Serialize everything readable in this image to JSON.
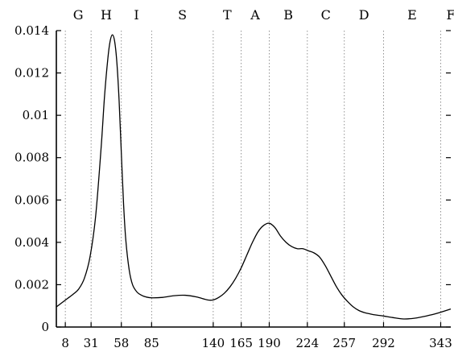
{
  "chart_data": {
    "type": "line",
    "title": "",
    "xlabel": "",
    "ylabel": "",
    "xlim": [
      0,
      352
    ],
    "ylim": [
      0,
      0.014
    ],
    "grid": "vertical dotted lines at x tick positions",
    "legend": "none",
    "line_color": "#000000",
    "x_ticks": [
      8,
      31,
      58,
      85,
      140,
      165,
      190,
      224,
      257,
      292,
      343
    ],
    "x_tick_labels": [
      "8",
      "31",
      "58",
      "85",
      "140",
      "165",
      "190",
      "224",
      "257",
      "292",
      "343"
    ],
    "y_ticks": [
      0,
      0.002,
      0.004,
      0.006,
      0.008,
      0.01,
      0.012,
      0.014
    ],
    "y_tick_labels": [
      "0",
      "0.002",
      "0.004",
      "0.006",
      "0.008",
      "0.01",
      "0.012",
      "0.014"
    ],
    "top_labels": [
      {
        "text": "G",
        "x": 19.5
      },
      {
        "text": "H",
        "x": 44.5
      },
      {
        "text": "I",
        "x": 71.5
      },
      {
        "text": "S",
        "x": 112.5
      },
      {
        "text": "T",
        "x": 152.5
      },
      {
        "text": "A",
        "x": 177.5
      },
      {
        "text": "B",
        "x": 207
      },
      {
        "text": "C",
        "x": 240.5
      },
      {
        "text": "D",
        "x": 274.5
      },
      {
        "text": "E",
        "x": 317.5
      },
      {
        "text": "F",
        "x": 352
      }
    ],
    "series": [
      {
        "x": [
          0,
          5,
          10,
          15,
          20,
          25,
          30,
          35,
          40,
          43,
          46,
          48,
          50,
          52,
          54,
          56,
          58,
          60,
          62,
          65,
          68,
          72,
          76,
          80,
          85,
          95,
          105,
          115,
          125,
          135,
          140,
          145,
          150,
          155,
          160,
          165,
          170,
          175,
          180,
          185,
          190,
          195,
          200,
          205,
          210,
          215,
          220,
          225,
          230,
          235,
          240,
          245,
          250,
          255,
          260,
          265,
          270,
          275,
          280,
          285,
          292,
          300,
          310,
          320,
          330,
          340,
          352
        ],
        "y": [
          0.00095,
          0.00115,
          0.00135,
          0.00155,
          0.0018,
          0.0023,
          0.0033,
          0.0052,
          0.0085,
          0.0109,
          0.0127,
          0.0135,
          0.0138,
          0.0135,
          0.0125,
          0.0107,
          0.0082,
          0.0058,
          0.0041,
          0.0027,
          0.002,
          0.00165,
          0.0015,
          0.00142,
          0.00138,
          0.0014,
          0.00148,
          0.0015,
          0.00142,
          0.00128,
          0.00128,
          0.0014,
          0.0016,
          0.0019,
          0.0023,
          0.0028,
          0.0034,
          0.004,
          0.0045,
          0.0048,
          0.0049,
          0.0047,
          0.0043,
          0.004,
          0.0038,
          0.0037,
          0.0037,
          0.0036,
          0.0035,
          0.0033,
          0.0029,
          0.0024,
          0.0019,
          0.0015,
          0.0012,
          0.00095,
          0.00078,
          0.00068,
          0.00062,
          0.00057,
          0.00052,
          0.00045,
          0.00038,
          0.00042,
          0.00052,
          0.00065,
          0.00085
        ]
      }
    ]
  }
}
